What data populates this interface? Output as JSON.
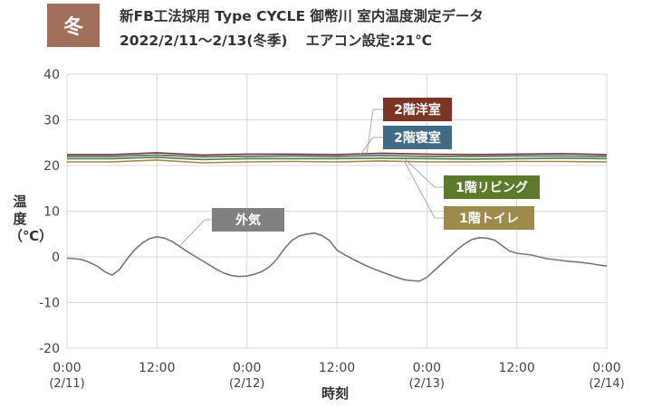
{
  "header": {
    "season_badge": "冬",
    "title_line1": "新FB工法採用 Type CYCLE 御幣川 室内温度測定データ",
    "title_period": "2022/2/11～2/13(冬季)",
    "title_setting": "エアコン設定:21℃"
  },
  "chart_data": {
    "type": "line",
    "xlabel": "時刻",
    "ylabel": "温度（℃）",
    "ylim": [
      -20,
      40
    ],
    "y_ticks": [
      -20,
      -10,
      0,
      10,
      20,
      30,
      40
    ],
    "y_tick_labels": [
      "-20",
      "-10",
      "0",
      "10",
      "20",
      "30",
      "40"
    ],
    "x_unit": "hours",
    "xlim": [
      0,
      72
    ],
    "x_ticks": [
      {
        "x": 0,
        "time": "0:00",
        "date": "(2/11)"
      },
      {
        "x": 12,
        "time": "12:00",
        "date": ""
      },
      {
        "x": 24,
        "time": "0:00",
        "date": "(2/12)"
      },
      {
        "x": 36,
        "time": "12:00",
        "date": ""
      },
      {
        "x": 48,
        "time": "0:00",
        "date": "(2/13)"
      },
      {
        "x": 60,
        "time": "12:00",
        "date": ""
      },
      {
        "x": 72,
        "time": "0:00",
        "date": "(2/14)"
      }
    ],
    "grid": true,
    "series": [
      {
        "name": "2階洋室",
        "color": "#7a3524",
        "x": [
          0,
          6,
          12,
          18,
          24,
          30,
          36,
          42,
          48,
          54,
          60,
          66,
          72
        ],
        "y": [
          22.4,
          22.4,
          22.8,
          22.3,
          22.5,
          22.5,
          22.4,
          22.7,
          22.5,
          22.4,
          22.5,
          22.6,
          22.4
        ]
      },
      {
        "name": "2階寝室",
        "color": "#3f6b86",
        "x": [
          0,
          6,
          12,
          18,
          24,
          30,
          36,
          42,
          48,
          54,
          60,
          66,
          72
        ],
        "y": [
          22.0,
          22.0,
          22.3,
          21.9,
          22.0,
          22.1,
          22.0,
          22.2,
          22.0,
          22.0,
          22.1,
          22.1,
          22.0
        ]
      },
      {
        "name": "1階リビング",
        "color": "#5d7a2c",
        "x": [
          0,
          6,
          12,
          18,
          24,
          30,
          36,
          42,
          48,
          54,
          60,
          66,
          72
        ],
        "y": [
          21.5,
          21.5,
          21.8,
          21.3,
          21.5,
          21.5,
          21.5,
          21.6,
          21.5,
          21.4,
          21.5,
          21.6,
          21.5
        ]
      },
      {
        "name": "1階トイレ",
        "color": "#9e8a4a",
        "x": [
          0,
          6,
          12,
          18,
          24,
          30,
          36,
          42,
          48,
          54,
          60,
          66,
          72
        ],
        "y": [
          20.8,
          20.8,
          21.2,
          20.6,
          20.8,
          20.9,
          20.8,
          21.0,
          20.8,
          20.8,
          20.9,
          20.9,
          20.8
        ]
      },
      {
        "name": "外気",
        "color": "#777777",
        "x": [
          0,
          1,
          2,
          3,
          4,
          5,
          6,
          7,
          8,
          9,
          10,
          11,
          12,
          13,
          14,
          15,
          16,
          17,
          18,
          19,
          20,
          21,
          22,
          23,
          24,
          25,
          26,
          27,
          28,
          29,
          30,
          31,
          32,
          33,
          34,
          35,
          36,
          37,
          38,
          39,
          40,
          41,
          42,
          43,
          44,
          45,
          46,
          47,
          48,
          49,
          50,
          51,
          52,
          53,
          54,
          55,
          56,
          57,
          58,
          59,
          60,
          61,
          62,
          63,
          64,
          65,
          66,
          67,
          68,
          69,
          70,
          71,
          72
        ],
        "y": [
          -0.3,
          -0.4,
          -0.6,
          -1.2,
          -2.0,
          -3.2,
          -4.0,
          -2.8,
          -0.5,
          1.5,
          3.0,
          4.0,
          4.4,
          4.1,
          3.4,
          2.3,
          1.2,
          0.2,
          -0.8,
          -1.8,
          -2.8,
          -3.6,
          -4.1,
          -4.3,
          -4.2,
          -3.8,
          -3.2,
          -2.2,
          -0.5,
          1.8,
          3.6,
          4.6,
          5.0,
          5.2,
          4.7,
          3.6,
          1.5,
          0.5,
          -0.4,
          -1.2,
          -2.0,
          -2.7,
          -3.3,
          -3.9,
          -4.5,
          -5.0,
          -5.2,
          -5.3,
          -4.5,
          -3.0,
          -1.5,
          0.0,
          1.5,
          2.8,
          3.8,
          4.2,
          4.1,
          3.7,
          2.5,
          1.3,
          0.8,
          0.6,
          0.4,
          0.0,
          -0.4,
          -0.6,
          -0.8,
          -1.0,
          -1.1,
          -1.3,
          -1.5,
          -1.8,
          -2.0
        ]
      }
    ],
    "annotations": [
      {
        "label": "2階洋室",
        "series": "2階洋室",
        "color": "#7a3524"
      },
      {
        "label": "2階寝室",
        "series": "2階寝室",
        "color": "#3f6b86"
      },
      {
        "label": "1階リビング",
        "series": "1階リビング",
        "color": "#5d7a2c"
      },
      {
        "label": "1階トイレ",
        "series": "1階トイレ",
        "color": "#9e8a4a"
      },
      {
        "label": "外気",
        "series": "外気",
        "color": "#808080"
      }
    ]
  }
}
